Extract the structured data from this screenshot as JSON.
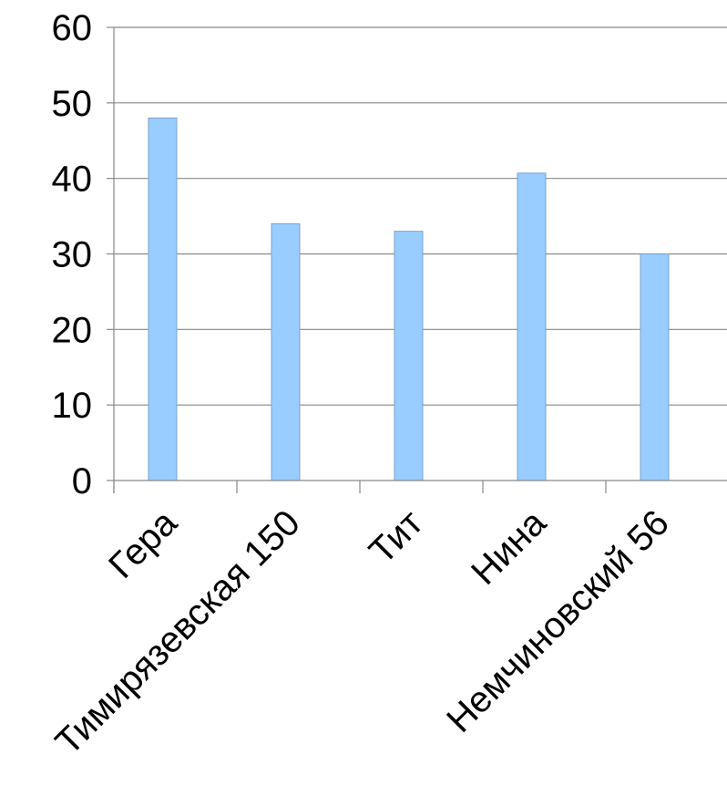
{
  "chart_data": {
    "type": "bar",
    "title": "",
    "xlabel": "",
    "ylabel": "",
    "categories": [
      "Гера",
      "Тимирязевская 150",
      "Тит",
      "Нина",
      "Немчиновский 56"
    ],
    "values": [
      48,
      34,
      33,
      40.7,
      30
    ],
    "ylim": [
      0,
      60
    ],
    "yticks": [
      0,
      10,
      20,
      30,
      40,
      50,
      60
    ],
    "grid": true,
    "legend": "none",
    "colors": {
      "bar_fill": "#99ccff",
      "bar_stroke": "#7aa3cc",
      "grid": "#888888",
      "axis": "#888888",
      "text": "#000000"
    }
  }
}
